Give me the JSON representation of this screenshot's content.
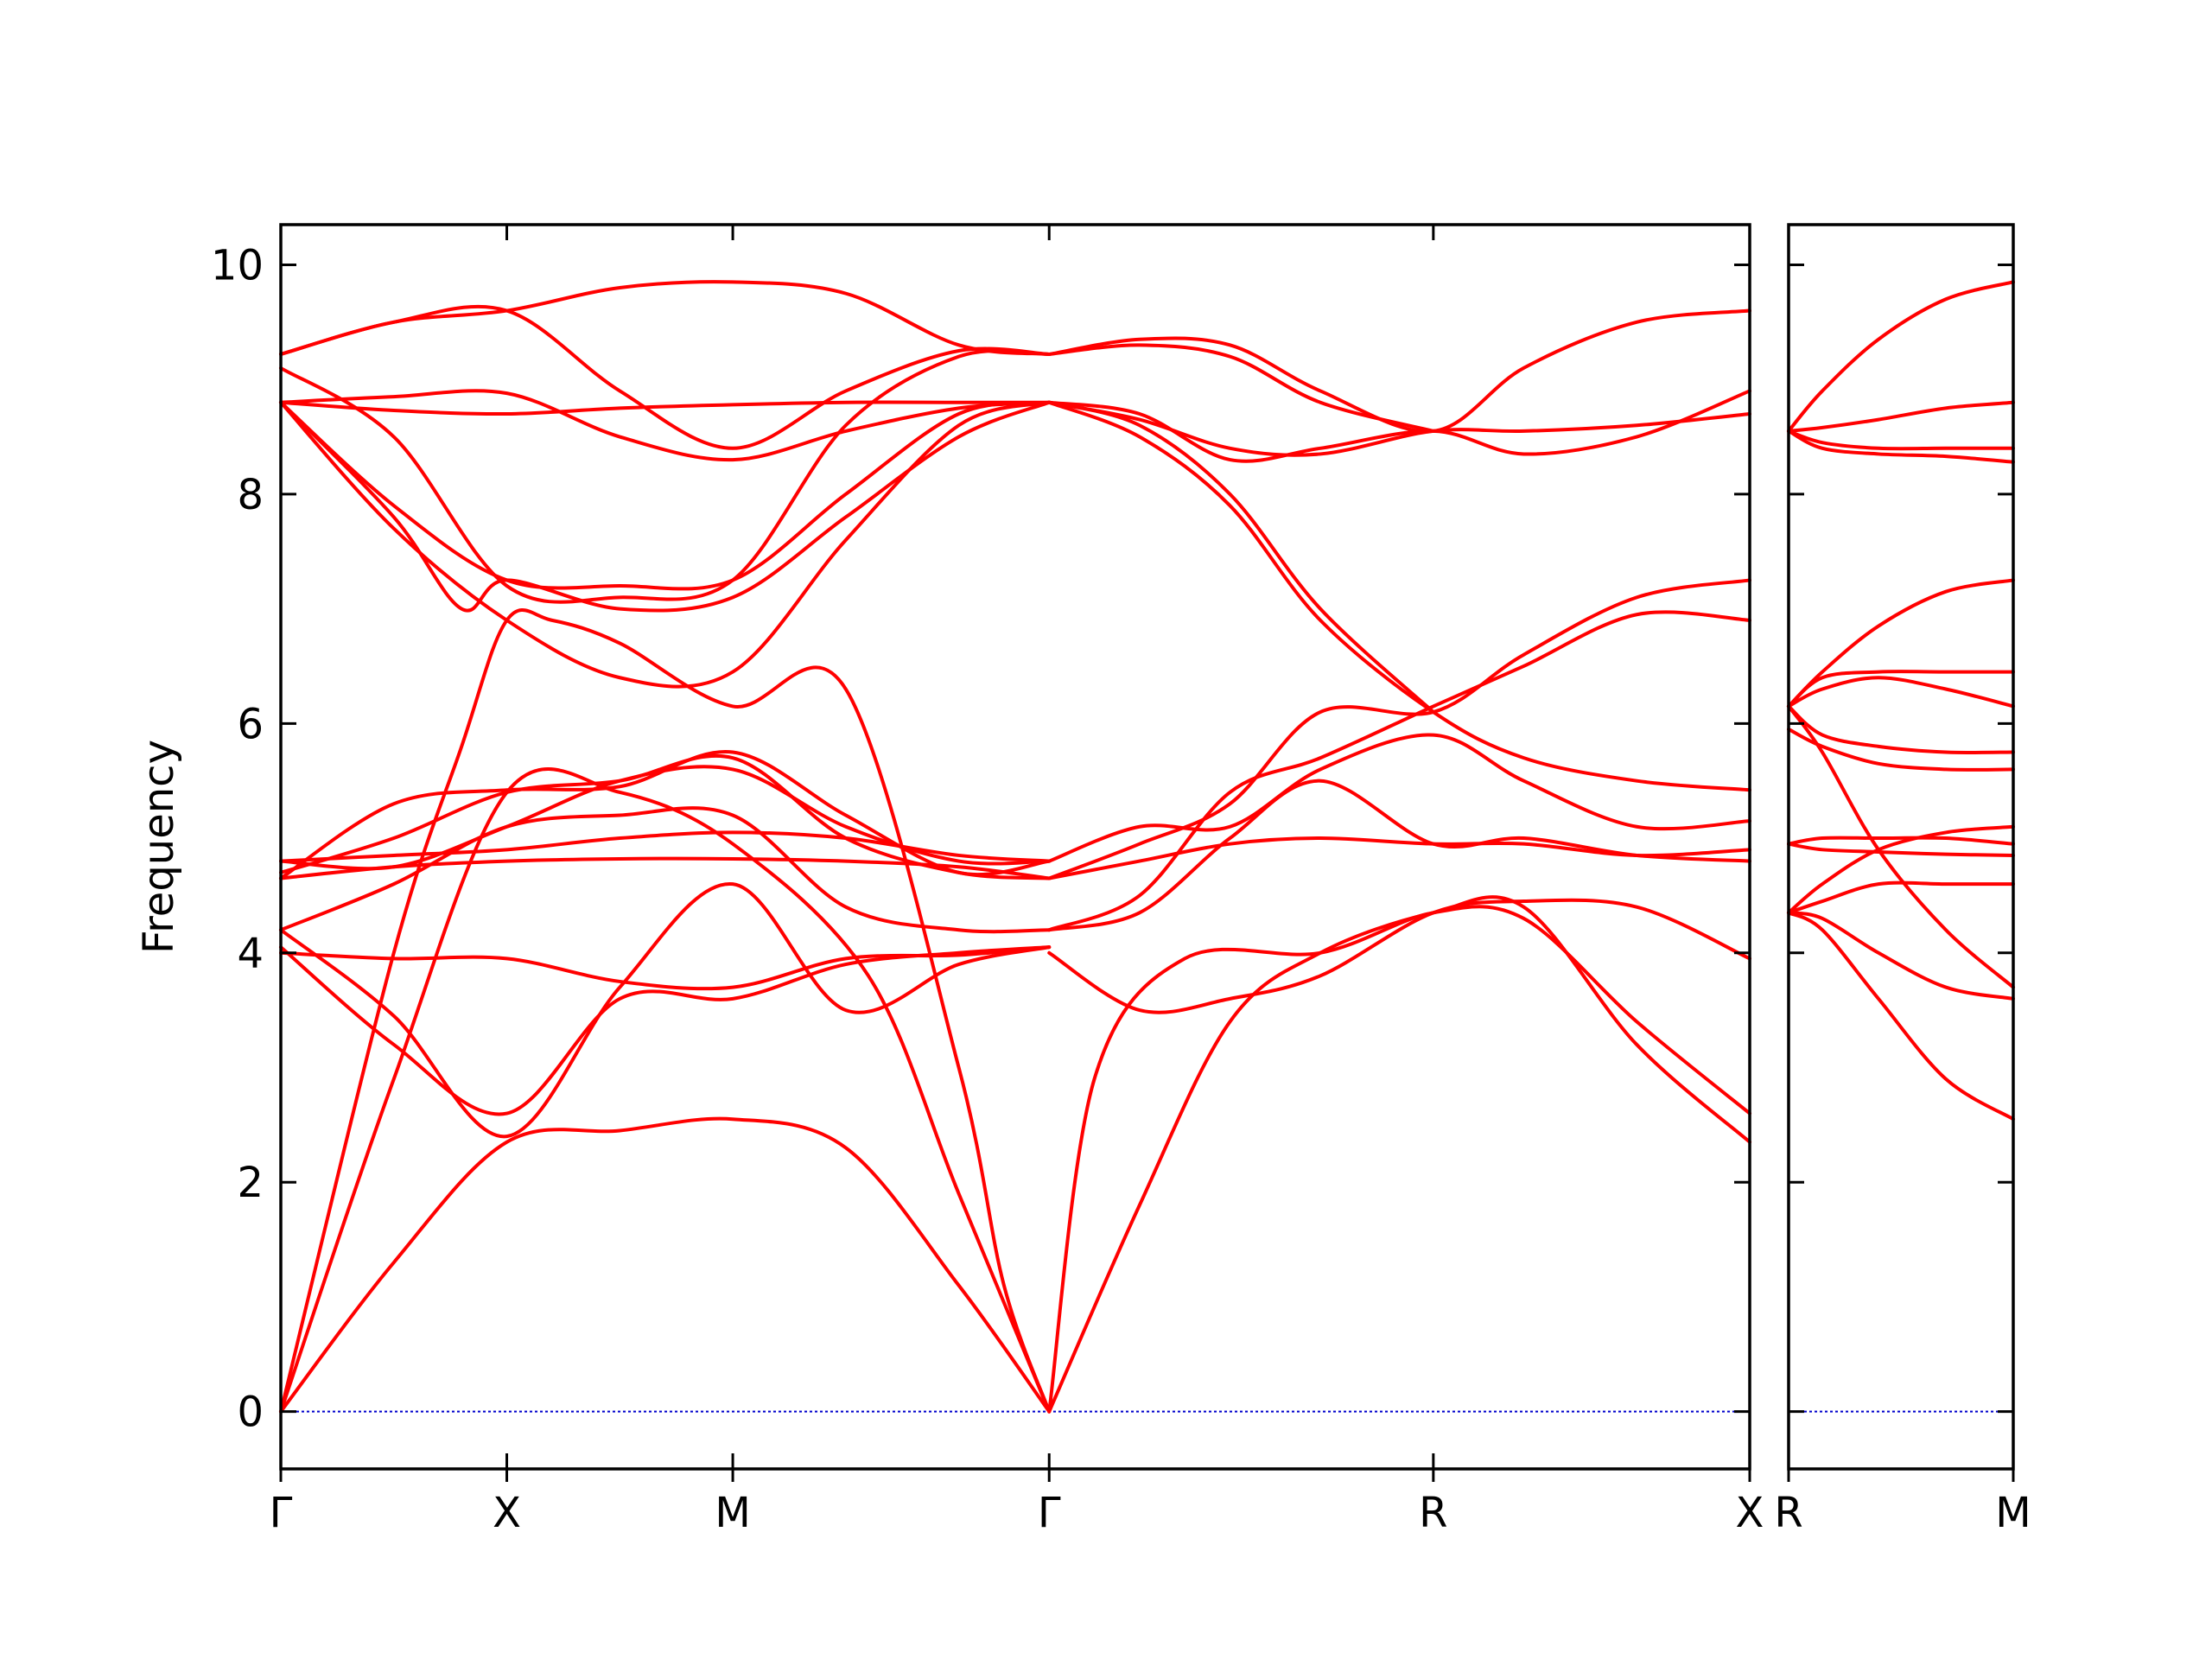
{
  "chart_data": {
    "type": "line",
    "ylabel": "Frequency",
    "ylim": [
      -0.5,
      10.35
    ],
    "yticks": [
      0,
      2,
      4,
      6,
      8,
      10
    ],
    "ytick_labels": [
      "0",
      "2",
      "4",
      "6",
      "8",
      "10"
    ],
    "grid": false,
    "legend": "none",
    "colors": {
      "bands": "#ff0000",
      "zero_line": "#0000cc",
      "axes": "#000000"
    },
    "panels": [
      {
        "name": "main",
        "x_positions": [
          0,
          1,
          2,
          3.4,
          5.1,
          6.5
        ],
        "xtick_labels": [
          "Γ",
          "X",
          "M",
          "Γ",
          "R",
          "X"
        ],
        "bands": [
          {
            "x": [
              0,
              0.5,
              1,
              1.5,
              2,
              2.5,
              3,
              3.4
            ],
            "y": [
              0.0,
              1.3,
              2.35,
              2.45,
              2.55,
              2.3,
              1.1,
              0.0
            ]
          },
          {
            "x": [
              0,
              0.5,
              1,
              1.5,
              2,
              2.6,
              3,
              3.4
            ],
            "y": [
              0.0,
              2.9,
              5.4,
              5.4,
              4.95,
              3.8,
              1.9,
              0.0
            ]
          },
          {
            "x": [
              0,
              0.5,
              0.8,
              1,
              1.2,
              1.5,
              2,
              2.5,
              3,
              3.2,
              3.4
            ],
            "y": [
              0.0,
              4.0,
              5.8,
              6.9,
              6.9,
              6.7,
              6.15,
              6.3,
              3.0,
              1.1,
              0.0
            ]
          },
          {
            "x": [
              0,
              0.5,
              1,
              1.5,
              2,
              2.5,
              3,
              3.4
            ],
            "y": [
              4.05,
              3.2,
              2.6,
              3.6,
              3.6,
              3.9,
              4.0,
              4.05
            ]
          },
          {
            "x": [
              0,
              0.5,
              1,
              1.5,
              2,
              2.5,
              3,
              3.4
            ],
            "y": [
              4.0,
              3.95,
              3.95,
              3.75,
              3.7,
              3.95,
              3.98,
              4.05
            ]
          },
          {
            "x": [
              0,
              0.5,
              1,
              1.5,
              2,
              2.5,
              3,
              3.4
            ],
            "y": [
              4.2,
              3.45,
              2.4,
              3.7,
              4.6,
              3.5,
              3.9,
              4.05
            ]
          },
          {
            "x": [
              0,
              0.5,
              1,
              1.5,
              2,
              2.5,
              3,
              3.4
            ],
            "y": [
              4.2,
              4.6,
              5.1,
              5.2,
              5.2,
              4.4,
              4.2,
              4.2
            ]
          },
          {
            "x": [
              0,
              0.5,
              1,
              1.5,
              2,
              2.5,
              3,
              3.4
            ],
            "y": [
              4.7,
              5.0,
              5.4,
              5.5,
              5.7,
              5.0,
              4.7,
              4.65
            ]
          },
          {
            "x": [
              0,
              0.5,
              1,
              1.5,
              2,
              2.5,
              3,
              3.4
            ],
            "y": [
              4.8,
              4.85,
              4.9,
              5.0,
              5.05,
              5.0,
              4.85,
              4.8
            ]
          },
          {
            "x": [
              0,
              0.5,
              1,
              1.5,
              2,
              2.5,
              3,
              3.4
            ],
            "y": [
              4.65,
              4.75,
              4.8,
              4.82,
              4.82,
              4.8,
              4.75,
              4.65
            ]
          },
          {
            "x": [
              0,
              0.5,
              1,
              1.5,
              2,
              2.5,
              3,
              3.4
            ],
            "y": [
              4.8,
              4.75,
              5.1,
              5.5,
              5.6,
              5.1,
              4.8,
              4.8
            ]
          },
          {
            "x": [
              0,
              0.5,
              1,
              1.5,
              2,
              2.5,
              3,
              3.4
            ],
            "y": [
              4.65,
              5.3,
              5.42,
              5.45,
              5.75,
              5.2,
              4.7,
              4.8
            ]
          },
          {
            "x": [
              0,
              0.5,
              1,
              1.5,
              2,
              2.5,
              3,
              3.4
            ],
            "y": [
              8.8,
              7.7,
              6.9,
              6.4,
              6.45,
              7.6,
              8.6,
              8.8
            ]
          },
          {
            "x": [
              0,
              0.5,
              0.8,
              1,
              1.5,
              2,
              2.5,
              3,
              3.4
            ],
            "y": [
              8.8,
              7.8,
              7.0,
              7.25,
              7.0,
              7.1,
              7.8,
              8.5,
              8.8
            ]
          },
          {
            "x": [
              0,
              0.5,
              1,
              1.5,
              2,
              2.5,
              3,
              3.4
            ],
            "y": [
              8.8,
              7.9,
              7.25,
              7.2,
              7.25,
              8.0,
              8.7,
              8.8
            ]
          },
          {
            "x": [
              0,
              0.5,
              1,
              1.5,
              2,
              2.5,
              3,
              3.4
            ],
            "y": [
              8.8,
              8.85,
              8.88,
              8.5,
              8.3,
              8.55,
              8.75,
              8.8
            ]
          },
          {
            "x": [
              0,
              0.5,
              1,
              1.5,
              2,
              2.5,
              3,
              3.4
            ],
            "y": [
              8.8,
              8.73,
              8.7,
              8.75,
              8.78,
              8.8,
              8.8,
              8.8
            ]
          },
          {
            "x": [
              0,
              0.5,
              1,
              1.5,
              2,
              2.5,
              3,
              3.4
            ],
            "y": [
              9.1,
              8.5,
              7.2,
              7.1,
              7.25,
              8.6,
              9.2,
              9.22
            ]
          },
          {
            "x": [
              0,
              0.5,
              1,
              1.5,
              2,
              2.5,
              3,
              3.4
            ],
            "y": [
              9.22,
              9.5,
              9.6,
              9.8,
              9.85,
              9.75,
              9.3,
              9.22
            ]
          },
          {
            "x": [
              0,
              0.5,
              1,
              1.5,
              2,
              2.5,
              3,
              3.4
            ],
            "y": [
              9.22,
              9.5,
              9.6,
              8.9,
              8.4,
              8.9,
              9.25,
              9.22
            ]
          },
          {
            "x": [
              3.4,
              3.8,
              4.2,
              4.6,
              5.1,
              5.5,
              6.0,
              6.5
            ],
            "y": [
              0.0,
              1.8,
              3.4,
              4.0,
              4.35,
              4.4,
              3.2,
              2.35
            ]
          },
          {
            "x": [
              3.4,
              3.6,
              4.0,
              4.6,
              5.1,
              5.5,
              6.0,
              6.5
            ],
            "y": [
              0.0,
              2.9,
              3.95,
              4.0,
              4.35,
              4.3,
              3.4,
              2.6
            ]
          },
          {
            "x": [
              3.4,
              3.8,
              4.2,
              4.6,
              5.1,
              5.5,
              6.0,
              6.5
            ],
            "y": [
              4.0,
              3.5,
              3.6,
              3.8,
              4.35,
              4.45,
              4.4,
              3.95
            ]
          },
          {
            "x": [
              3.4,
              3.8,
              4.2,
              4.6,
              5.1,
              5.5,
              6.0,
              6.5
            ],
            "y": [
              4.2,
              4.35,
              5.0,
              5.5,
              4.95,
              5.0,
              4.85,
              4.8
            ]
          },
          {
            "x": [
              3.4,
              3.8,
              4.2,
              4.6,
              5.1,
              5.5,
              6.0,
              6.5
            ],
            "y": [
              4.65,
              4.8,
              4.95,
              5.0,
              4.95,
              4.95,
              4.85,
              4.9
            ]
          },
          {
            "x": [
              3.4,
              3.8,
              4.2,
              4.6,
              5.1,
              5.5,
              6.0,
              6.5
            ],
            "y": [
              4.8,
              5.1,
              5.1,
              5.6,
              5.9,
              5.5,
              5.1,
              5.15
            ]
          },
          {
            "x": [
              3.4,
              3.8,
              4.2,
              4.6,
              5.1,
              5.5,
              6.0,
              6.5
            ],
            "y": [
              4.65,
              4.95,
              5.3,
              6.1,
              6.1,
              6.6,
              7.1,
              7.25
            ]
          },
          {
            "x": [
              3.4,
              3.8,
              4.2,
              4.6,
              5.1,
              5.5,
              6.0,
              6.5
            ],
            "y": [
              4.2,
              4.5,
              5.4,
              5.7,
              6.15,
              6.5,
              6.95,
              6.9
            ]
          },
          {
            "x": [
              3.4,
              3.8,
              4.2,
              4.6,
              5.1,
              5.5,
              6.0,
              6.5
            ],
            "y": [
              8.8,
              8.5,
              7.9,
              6.9,
              6.1,
              5.7,
              5.5,
              5.42
            ]
          },
          {
            "x": [
              3.4,
              3.8,
              4.2,
              4.6,
              5.1
            ],
            "y": [
              8.8,
              8.6,
              8.0,
              7.0,
              6.1
            ]
          },
          {
            "x": [
              3.4,
              3.8,
              4.2,
              4.6,
              5.1,
              5.5,
              6.0,
              6.5
            ],
            "y": [
              8.8,
              8.65,
              8.4,
              8.35,
              8.55,
              8.55,
              8.6,
              8.7
            ]
          },
          {
            "x": [
              3.4,
              3.8,
              4.2,
              4.6,
              5.1,
              5.5,
              6.0,
              6.5
            ],
            "y": [
              8.8,
              8.7,
              8.3,
              8.4,
              8.55,
              8.35,
              8.5,
              8.9
            ]
          },
          {
            "x": [
              3.4,
              3.8,
              4.2,
              4.6,
              5.1,
              5.5,
              6.0,
              6.5
            ],
            "y": [
              9.22,
              9.35,
              9.3,
              8.9,
              8.55,
              9.1,
              9.5,
              9.6
            ]
          },
          {
            "x": [
              3.4,
              3.8,
              4.2,
              4.6,
              5.1
            ],
            "y": [
              9.22,
              9.3,
              9.2,
              8.8,
              8.55
            ]
          }
        ]
      },
      {
        "name": "right",
        "x_positions": [
          0,
          1
        ],
        "xtick_labels": [
          "R",
          "M"
        ],
        "bands": [
          {
            "x": [
              0,
              0.15,
              0.4,
              0.7,
              1
            ],
            "y": [
              4.35,
              4.2,
              3.6,
              2.9,
              2.55
            ]
          },
          {
            "x": [
              0,
              0.15,
              0.4,
              0.7,
              1
            ],
            "y": [
              4.35,
              4.3,
              4.0,
              3.7,
              3.6
            ]
          },
          {
            "x": [
              0,
              0.15,
              0.4,
              0.7,
              1
            ],
            "y": [
              4.35,
              4.45,
              4.6,
              4.6,
              4.6
            ]
          },
          {
            "x": [
              0,
              0.15,
              0.4,
              0.7,
              1
            ],
            "y": [
              4.35,
              4.6,
              4.9,
              5.05,
              5.1
            ]
          },
          {
            "x": [
              0,
              0.15,
              0.4,
              0.7,
              1
            ],
            "y": [
              4.95,
              4.9,
              4.88,
              4.86,
              4.85
            ]
          },
          {
            "x": [
              0,
              0.15,
              0.4,
              0.7,
              1
            ],
            "y": [
              4.95,
              5.0,
              5.0,
              5.0,
              4.95
            ]
          },
          {
            "x": [
              0,
              0.15,
              0.4,
              0.7,
              1
            ],
            "y": [
              5.95,
              5.8,
              5.65,
              5.6,
              5.6
            ]
          },
          {
            "x": [
              0,
              0.15,
              0.4,
              0.7,
              1
            ],
            "y": [
              6.15,
              5.75,
              4.9,
              4.2,
              3.7
            ]
          },
          {
            "x": [
              0,
              0.15,
              0.4,
              0.7,
              1
            ],
            "y": [
              6.15,
              5.9,
              5.8,
              5.75,
              5.75
            ]
          },
          {
            "x": [
              0,
              0.15,
              0.4,
              0.7,
              1
            ],
            "y": [
              6.15,
              6.3,
              6.4,
              6.3,
              6.15
            ]
          },
          {
            "x": [
              0,
              0.15,
              0.4,
              0.7,
              1
            ],
            "y": [
              6.15,
              6.4,
              6.45,
              6.45,
              6.45
            ]
          },
          {
            "x": [
              0,
              0.15,
              0.4,
              0.7,
              1
            ],
            "y": [
              6.15,
              6.45,
              6.85,
              7.15,
              7.25
            ]
          },
          {
            "x": [
              0,
              0.15,
              0.4,
              0.7,
              1
            ],
            "y": [
              8.55,
              8.4,
              8.35,
              8.33,
              8.28
            ]
          },
          {
            "x": [
              0,
              0.15,
              0.4,
              0.7,
              1
            ],
            "y": [
              8.55,
              8.45,
              8.4,
              8.4,
              8.4
            ]
          },
          {
            "x": [
              0,
              0.15,
              0.4,
              0.7,
              1
            ],
            "y": [
              8.55,
              8.58,
              8.65,
              8.75,
              8.8
            ]
          },
          {
            "x": [
              0,
              0.15,
              0.4,
              0.7,
              1
            ],
            "y": [
              8.55,
              8.9,
              9.35,
              9.7,
              9.85
            ]
          }
        ]
      }
    ]
  }
}
